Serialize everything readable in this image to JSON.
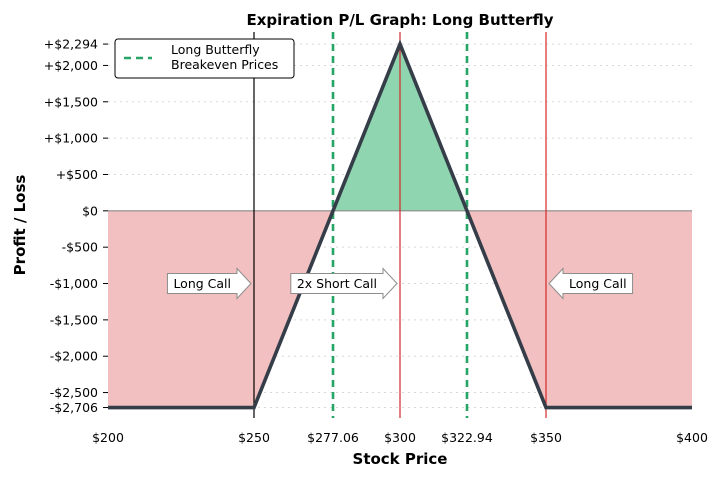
{
  "chart_data": {
    "type": "line",
    "title": "Expiration P/L Graph: Long Butterfly",
    "xlabel": "Stock Price",
    "ylabel": "Profit / Loss",
    "xlim": [
      200,
      400
    ],
    "ylim": [
      -2850,
      2460
    ],
    "grid": true,
    "legend_position": "top-left",
    "x_ticks": [
      {
        "value": 200,
        "label": "$200"
      },
      {
        "value": 250,
        "label": "$250"
      },
      {
        "value": 277.06,
        "label": "$277.06"
      },
      {
        "value": 300,
        "label": "$300"
      },
      {
        "value": 322.94,
        "label": "$322.94"
      },
      {
        "value": 350,
        "label": "$350"
      },
      {
        "value": 400,
        "label": "$400"
      }
    ],
    "y_ticks": [
      {
        "value": 2294,
        "label": "+$2,294"
      },
      {
        "value": 2000,
        "label": "+$2,000"
      },
      {
        "value": 1500,
        "label": "+$1,500"
      },
      {
        "value": 1000,
        "label": "+$1,000"
      },
      {
        "value": 500,
        "label": "+$500"
      },
      {
        "value": 0,
        "label": "$0"
      },
      {
        "value": -500,
        "label": "-$500"
      },
      {
        "value": -1000,
        "label": "-$1,000"
      },
      {
        "value": -1500,
        "label": "-$1,500"
      },
      {
        "value": -2000,
        "label": "-$2,000"
      },
      {
        "value": -2500,
        "label": "-$2,500"
      },
      {
        "value": -2706,
        "label": "-$2,706"
      }
    ],
    "payoff": {
      "x": [
        200,
        250,
        300,
        350,
        400
      ],
      "y": [
        -2706,
        -2706,
        2294,
        -2706,
        -2706
      ]
    },
    "breakevens": [
      277.06,
      322.94
    ],
    "strikes": [
      {
        "x": 250,
        "color": "#000000"
      },
      {
        "x": 300,
        "color": "#d62728"
      },
      {
        "x": 350,
        "color": "#d62728"
      }
    ],
    "legend": [
      {
        "label_lines": [
          "Long Butterfly",
          "Breakeven Prices"
        ],
        "style": "dashed",
        "color": "#27a567"
      }
    ],
    "annotations": [
      {
        "text": "Long Call",
        "direction": "right",
        "x_tip": 250,
        "y": -1000
      },
      {
        "text": "2x Short Call",
        "direction": "right",
        "x_tip": 300,
        "y": -1000
      },
      {
        "text": "Long Call",
        "direction": "left",
        "x_tip": 350,
        "y": -1000
      }
    ],
    "colors": {
      "profit_fill": "#8fd6b0",
      "loss_fill": "#f2c0c0",
      "payoff_line": "#353d49",
      "breakeven": "#27a567",
      "zero_line": "#8a8a8a"
    }
  }
}
